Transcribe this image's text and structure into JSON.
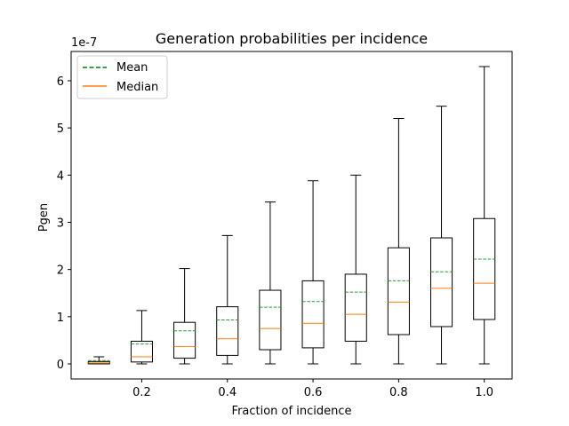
{
  "chart_data": {
    "type": "box",
    "title": "Generation probabilities per incidence",
    "xlabel": "Fraction of incidence",
    "ylabel": "Pgen",
    "y_offset_label": "1e-7",
    "xlim": [
      0.035,
      1.065
    ],
    "ylim": [
      -0.32,
      6.62
    ],
    "x_ticks": [
      0.2,
      0.4,
      0.6,
      0.8,
      1.0
    ],
    "x_tick_labels": [
      "0.2",
      "0.4",
      "0.6",
      "0.8",
      "1.0"
    ],
    "y_ticks": [
      0,
      1,
      2,
      3,
      4,
      5,
      6
    ],
    "y_tick_labels": [
      "0",
      "1",
      "2",
      "3",
      "4",
      "5",
      "6"
    ],
    "legend": {
      "location": "top-left",
      "entries": [
        {
          "label": "Mean",
          "style": "dashed",
          "color": "#008000"
        },
        {
          "label": "Median",
          "style": "solid",
          "color": "#ff7f0e"
        }
      ]
    },
    "colors": {
      "box": "#000000",
      "mean_line": "#2ca02c",
      "median_line": "#ff7f0e"
    },
    "series": [
      {
        "x": 0.1,
        "whisker_low": 0.0,
        "q1": 0.0,
        "median": 0.02,
        "q3": 0.05,
        "whisker_high": 0.15,
        "mean": 0.07
      },
      {
        "x": 0.2,
        "whisker_low": 0.0,
        "q1": 0.04,
        "median": 0.15,
        "q3": 0.48,
        "whisker_high": 1.13,
        "mean": 0.42
      },
      {
        "x": 0.3,
        "whisker_low": 0.0,
        "q1": 0.12,
        "median": 0.37,
        "q3": 0.88,
        "whisker_high": 2.02,
        "mean": 0.7
      },
      {
        "x": 0.4,
        "whisker_low": 0.0,
        "q1": 0.18,
        "median": 0.53,
        "q3": 1.21,
        "whisker_high": 2.72,
        "mean": 0.93
      },
      {
        "x": 0.5,
        "whisker_low": 0.0,
        "q1": 0.3,
        "median": 0.75,
        "q3": 1.56,
        "whisker_high": 3.43,
        "mean": 1.2
      },
      {
        "x": 0.6,
        "whisker_low": 0.0,
        "q1": 0.34,
        "median": 0.86,
        "q3": 1.76,
        "whisker_high": 3.88,
        "mean": 1.32
      },
      {
        "x": 0.7,
        "whisker_low": 0.0,
        "q1": 0.48,
        "median": 1.05,
        "q3": 1.9,
        "whisker_high": 4.0,
        "mean": 1.52
      },
      {
        "x": 0.8,
        "whisker_low": 0.0,
        "q1": 0.62,
        "median": 1.31,
        "q3": 2.46,
        "whisker_high": 5.2,
        "mean": 1.76
      },
      {
        "x": 0.9,
        "whisker_low": 0.0,
        "q1": 0.79,
        "median": 1.6,
        "q3": 2.67,
        "whisker_high": 5.46,
        "mean": 1.95
      },
      {
        "x": 1.0,
        "whisker_low": 0.0,
        "q1": 0.94,
        "median": 1.71,
        "q3": 3.08,
        "whisker_high": 6.3,
        "mean": 2.22
      }
    ]
  }
}
